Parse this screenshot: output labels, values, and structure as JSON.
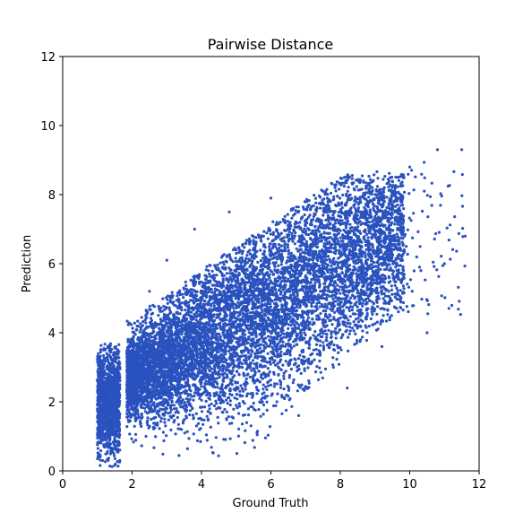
{
  "chart_data": {
    "type": "scatter",
    "title": "Pairwise Distance",
    "xlabel": "Ground Truth",
    "ylabel": "Prediction",
    "xlim": [
      0,
      12
    ],
    "ylim": [
      0,
      12
    ],
    "xticks": [
      "0",
      "2",
      "4",
      "6",
      "8",
      "10",
      "12"
    ],
    "yticks": [
      "0",
      "2",
      "4",
      "6",
      "8",
      "10",
      "12"
    ],
    "grid": false,
    "marker_color": "#2a52be",
    "series": [
      {
        "points": [
          [
            1.0,
            1.8
          ],
          [
            1.0,
            2.6
          ],
          [
            1.05,
            3.3
          ],
          [
            1.1,
            1.2
          ],
          [
            1.1,
            2.2
          ],
          [
            1.15,
            0.3
          ],
          [
            1.2,
            3.5
          ],
          [
            1.25,
            2.0
          ],
          [
            1.3,
            0.8
          ],
          [
            1.35,
            2.9
          ],
          [
            1.45,
            1.5
          ],
          [
            1.5,
            3.3
          ],
          [
            1.55,
            0.6
          ],
          [
            1.6,
            2.4
          ],
          [
            2.0,
            1.8
          ],
          [
            2.2,
            3.6
          ],
          [
            2.4,
            1.0
          ],
          [
            2.5,
            5.2
          ],
          [
            2.8,
            2.5
          ],
          [
            3.0,
            6.1
          ],
          [
            3.2,
            1.6
          ],
          [
            3.5,
            4.5
          ],
          [
            3.8,
            7.0
          ],
          [
            4.0,
            2.2
          ],
          [
            4.2,
            5.8
          ],
          [
            4.5,
            3.1
          ],
          [
            4.8,
            7.5
          ],
          [
            5.0,
            1.9
          ],
          [
            5.2,
            4.9
          ],
          [
            5.5,
            6.6
          ],
          [
            5.8,
            2.8
          ],
          [
            6.0,
            7.9
          ],
          [
            6.2,
            3.9
          ],
          [
            6.5,
            5.5
          ],
          [
            6.8,
            1.6
          ],
          [
            7.0,
            7.1
          ],
          [
            7.2,
            4.4
          ],
          [
            7.5,
            8.1
          ],
          [
            7.8,
            3.0
          ],
          [
            8.0,
            6.2
          ],
          [
            8.2,
            2.4
          ],
          [
            8.5,
            7.4
          ],
          [
            8.8,
            5.0
          ],
          [
            9.0,
            8.0
          ],
          [
            9.2,
            3.6
          ],
          [
            9.5,
            6.8
          ],
          [
            9.8,
            7.9
          ],
          [
            10.0,
            8.8
          ],
          [
            10.3,
            6.5
          ],
          [
            10.5,
            4.0
          ],
          [
            10.8,
            9.3
          ],
          [
            11.0,
            6.0
          ],
          [
            11.5,
            9.3
          ],
          [
            11.6,
            6.8
          ]
        ]
      }
    ]
  }
}
